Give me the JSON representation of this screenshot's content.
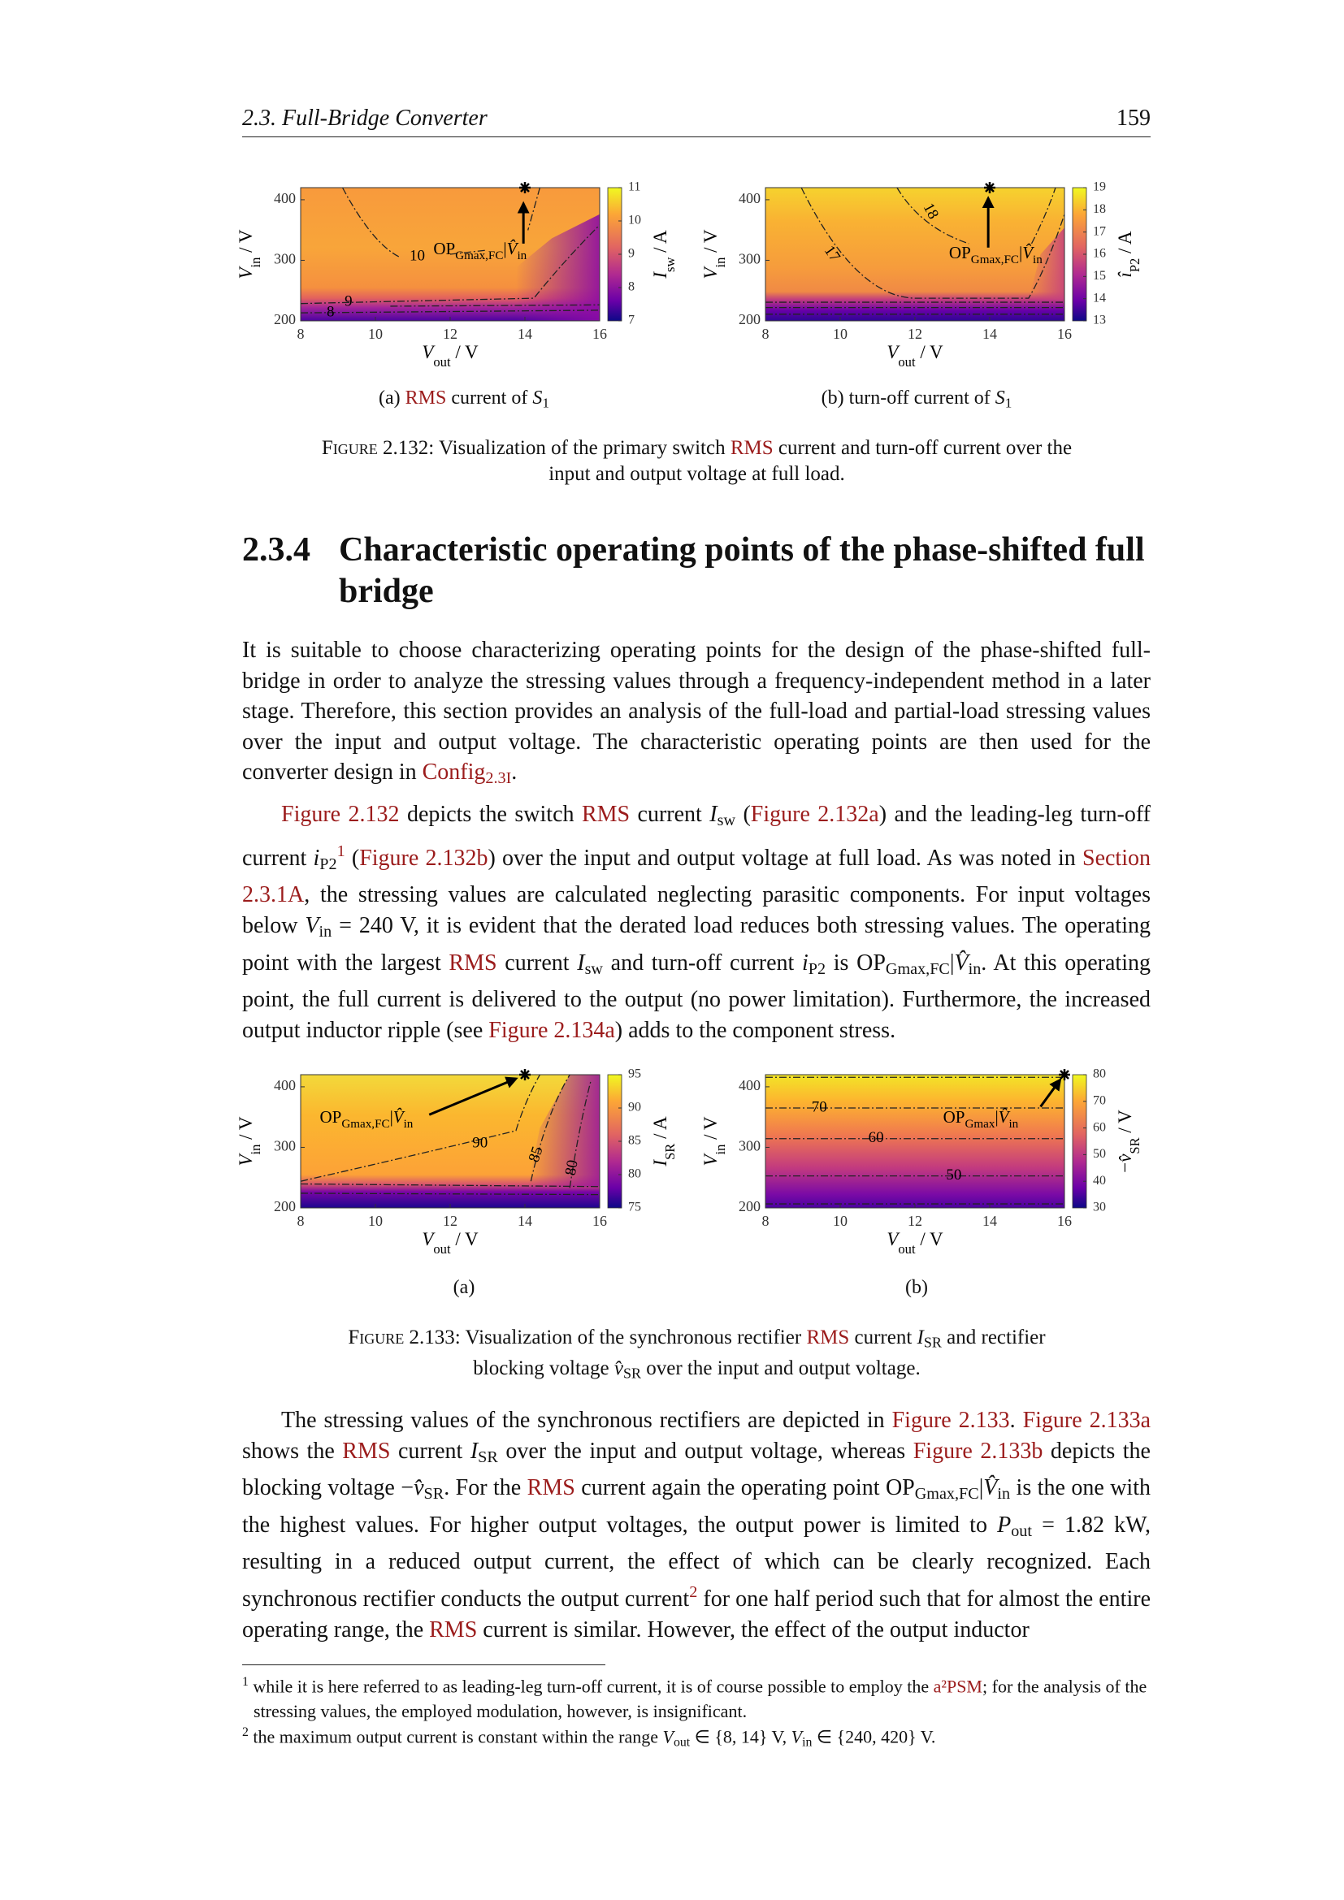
{
  "header": {
    "section": "2.3.  Full-Bridge Converter",
    "page": "159"
  },
  "figures": [
    {
      "panels": [
        {
          "type": "heatmap",
          "xlim": [
            8,
            16
          ],
          "ylim": [
            200,
            420
          ],
          "xticks": [
            8,
            10,
            12,
            14,
            16
          ],
          "yticks": [
            200,
            300,
            400
          ],
          "clim": [
            7,
            11
          ],
          "cticks": [
            7,
            8,
            9,
            10,
            11
          ],
          "contour_labels": [
            10,
            9,
            8
          ],
          "marker": [
            14,
            420
          ],
          "xlabel": [
            {
              "t": "V",
              "s": "i"
            },
            {
              "t": "out",
              "s": "sub"
            },
            " / V"
          ],
          "ylabel": [
            {
              "t": "V",
              "s": "i"
            },
            {
              "t": "in",
              "s": "sub"
            },
            " / V"
          ],
          "cbar_label": [
            {
              "t": "I",
              "s": "i"
            },
            {
              "t": "sw",
              "s": "sub"
            },
            " / A"
          ],
          "annotation": [
            "OP",
            {
              "t": "Gmax,FC",
              "s": "sub"
            },
            "|",
            {
              "t": "V̂",
              "s": "i"
            },
            {
              "t": "in",
              "s": "sub"
            }
          ],
          "subcaption": [
            "(a) ",
            {
              "t": "RMS",
              "s": "link"
            },
            " current of ",
            {
              "t": "S",
              "s": "i"
            },
            {
              "t": "1",
              "s": "sub"
            }
          ]
        },
        {
          "type": "heatmap",
          "xlim": [
            8,
            16
          ],
          "ylim": [
            200,
            420
          ],
          "xticks": [
            8,
            10,
            12,
            14,
            16
          ],
          "yticks": [
            200,
            300,
            400
          ],
          "clim": [
            13,
            19
          ],
          "cticks": [
            13,
            14,
            15,
            16,
            17,
            18,
            19
          ],
          "contour_labels": [
            18,
            17
          ],
          "marker": [
            14,
            420
          ],
          "xlabel": [
            {
              "t": "V",
              "s": "i"
            },
            {
              "t": "out",
              "s": "sub"
            },
            " / V"
          ],
          "ylabel": [
            {
              "t": "V",
              "s": "i"
            },
            {
              "t": "in",
              "s": "sub"
            },
            " / V"
          ],
          "cbar_label": [
            {
              "t": "î",
              "s": "i"
            },
            {
              "t": "P2",
              "s": "sub"
            },
            " / A"
          ],
          "annotation": [
            "OP",
            {
              "t": "Gmax,FC",
              "s": "sub"
            },
            "|",
            {
              "t": "V̂",
              "s": "i"
            },
            {
              "t": "in",
              "s": "sub"
            }
          ],
          "subcaption": [
            "(b) turn-off current of ",
            {
              "t": "S",
              "s": "i"
            },
            {
              "t": "1",
              "s": "sub"
            }
          ]
        }
      ],
      "caption": [
        {
          "t": "Figure 2.132",
          "s": "sc"
        },
        ": Visualization of the primary switch ",
        {
          "t": "RMS",
          "s": "link"
        },
        " current and turn-off current over the input and output voltage at full load."
      ]
    },
    {
      "panels": [
        {
          "type": "heatmap",
          "xlim": [
            8,
            16
          ],
          "ylim": [
            200,
            420
          ],
          "xticks": [
            8,
            10,
            12,
            14,
            16
          ],
          "yticks": [
            200,
            300,
            400
          ],
          "clim": [
            75,
            95
          ],
          "cticks": [
            75,
            80,
            85,
            90,
            95
          ],
          "contour_labels": [
            90,
            85,
            80
          ],
          "marker": [
            14,
            420
          ],
          "xlabel": [
            {
              "t": "V",
              "s": "i"
            },
            {
              "t": "out",
              "s": "sub"
            },
            " / V"
          ],
          "ylabel": [
            {
              "t": "V",
              "s": "i"
            },
            {
              "t": "in",
              "s": "sub"
            },
            " / V"
          ],
          "cbar_label": [
            {
              "t": "I",
              "s": "i"
            },
            {
              "t": "SR",
              "s": "sub"
            },
            " / A"
          ],
          "annotation": [
            "OP",
            {
              "t": "Gmax,FC",
              "s": "sub"
            },
            "|",
            {
              "t": "V̂",
              "s": "i"
            },
            {
              "t": "in",
              "s": "sub"
            }
          ],
          "subcaption": [
            "(a)"
          ]
        },
        {
          "type": "heatmap",
          "xlim": [
            8,
            16
          ],
          "ylim": [
            200,
            420
          ],
          "xticks": [
            8,
            10,
            12,
            14,
            16
          ],
          "yticks": [
            200,
            300,
            400
          ],
          "clim": [
            30,
            80
          ],
          "cticks": [
            30,
            40,
            50,
            60,
            70,
            80
          ],
          "contour_labels": [
            70,
            60,
            50
          ],
          "marker": [
            16,
            420
          ],
          "xlabel": [
            {
              "t": "V",
              "s": "i"
            },
            {
              "t": "out",
              "s": "sub"
            },
            " / V"
          ],
          "ylabel": [
            {
              "t": "V",
              "s": "i"
            },
            {
              "t": "in",
              "s": "sub"
            },
            " / V"
          ],
          "cbar_label": [
            "−",
            {
              "t": "v̂",
              "s": "i"
            },
            {
              "t": "SR",
              "s": "sub"
            },
            " / V"
          ],
          "annotation": [
            "OP",
            {
              "t": "Gmax",
              "s": "sub"
            },
            "|",
            {
              "t": "V̂",
              "s": "i"
            },
            {
              "t": "in",
              "s": "sub"
            }
          ],
          "subcaption": [
            "(b)"
          ]
        }
      ],
      "caption": [
        {
          "t": "Figure 2.133",
          "s": "sc"
        },
        ": Visualization of the synchronous rectifier ",
        {
          "t": "RMS",
          "s": "link"
        },
        " current ",
        {
          "t": "I",
          "s": "i"
        },
        {
          "t": "SR",
          "s": "sub"
        },
        " and rectifier blocking voltage ",
        {
          "t": "v̂",
          "s": "i"
        },
        {
          "t": "SR",
          "s": "sub"
        },
        " over the input and output voltage."
      ]
    }
  ],
  "section": {
    "number": "2.3.4",
    "title": "Characteristic operating points of the phase-shifted full bridge"
  },
  "paragraphs": [
    [
      "It is suitable to choose characterizing operating points for the design of the phase-shifted full-bridge in order to analyze the stressing values through a frequency-independent method in a later stage. Therefore, this section provides an analysis of the full-load and partial-load stressing values over the input and output voltage. The characteristic operating points are then used for the converter design in ",
      {
        "t": "Config",
        "s": "link"
      },
      {
        "t": "2.3I",
        "s": "link sub"
      },
      "."
    ],
    [
      {
        "t": "Figure 2.132",
        "s": "link"
      },
      " depicts the switch ",
      {
        "t": "RMS",
        "s": "link"
      },
      " current ",
      {
        "t": "I",
        "s": "i"
      },
      {
        "t": "sw",
        "s": "sub"
      },
      " (",
      {
        "t": "Figure 2.132a",
        "s": "link"
      },
      ") and the leading-leg turn-off current ",
      {
        "t": "i",
        "s": "i"
      },
      {
        "t": "P2",
        "s": "sub"
      },
      {
        "t": "1",
        "s": "link sup"
      },
      " (",
      {
        "t": "Figure 2.132b",
        "s": "link"
      },
      ") over the input and output voltage at full load. As was noted in ",
      {
        "t": "Section 2.3.1A",
        "s": "link"
      },
      ", the stressing values are calculated neglecting parasitic components. For input voltages below ",
      {
        "t": "V",
        "s": "i"
      },
      {
        "t": "in",
        "s": "sub"
      },
      " = 240 V, it is evident that the derated load reduces both stressing values. The operating point with the largest ",
      {
        "t": "RMS",
        "s": "link"
      },
      " current ",
      {
        "t": "I",
        "s": "i"
      },
      {
        "t": "sw",
        "s": "sub"
      },
      " and turn-off current ",
      {
        "t": "i",
        "s": "i"
      },
      {
        "t": "P2",
        "s": "sub"
      },
      " is OP",
      {
        "t": "Gmax,FC",
        "s": "sub"
      },
      "|",
      {
        "t": "V̂",
        "s": "i"
      },
      {
        "t": "in",
        "s": "sub"
      },
      ". At this operating point, the full current is delivered to the output (no power limitation). Furthermore, the increased output inductor ripple (see ",
      {
        "t": "Figure 2.134a",
        "s": "link"
      },
      ") adds to the component stress."
    ],
    [
      "The stressing values of the synchronous rectifiers are depicted in ",
      {
        "t": "Figure 2.133",
        "s": "link"
      },
      ". ",
      {
        "t": "Figure 2.133a",
        "s": "link"
      },
      " shows the ",
      {
        "t": "RMS",
        "s": "link"
      },
      " current ",
      {
        "t": "I",
        "s": "i"
      },
      {
        "t": "SR",
        "s": "sub"
      },
      " over the input and output voltage, whereas ",
      {
        "t": "Figure 2.133b",
        "s": "link"
      },
      " depicts the blocking voltage −",
      {
        "t": "v̂",
        "s": "i"
      },
      {
        "t": "SR",
        "s": "sub"
      },
      ". For the ",
      {
        "t": "RMS",
        "s": "link"
      },
      " current again the operating point OP",
      {
        "t": "Gmax,FC",
        "s": "sub"
      },
      "|",
      {
        "t": "V̂",
        "s": "i"
      },
      {
        "t": "in",
        "s": "sub"
      },
      " is the one with the highest values. For higher output voltages, the output power is limited to ",
      {
        "t": "P",
        "s": "i"
      },
      {
        "t": "out",
        "s": "sub"
      },
      " = 1.82 kW, resulting in a reduced output current, the effect of which can be clearly recognized. Each synchronous rectifier conducts the output current",
      {
        "t": "2",
        "s": "link sup"
      },
      " for one half period such that for almost the entire operating range, the ",
      {
        "t": "RMS",
        "s": "link"
      },
      " current is similar. However, the effect of the output inductor"
    ]
  ],
  "footnotes": [
    [
      {
        "t": "1",
        "s": "sup"
      },
      " while it is here referred to as leading-leg turn-off current, it is of course possible to employ the ",
      {
        "t": "a²PSM",
        "s": "link"
      },
      "; for the analysis of the stressing values, the employed modulation, however, is insignificant."
    ],
    [
      {
        "t": "2",
        "s": "sup"
      },
      " the maximum output current is constant within the range ",
      {
        "t": "V",
        "s": "i"
      },
      {
        "t": "out",
        "s": "sub"
      },
      " ∈ {8, 14} V, ",
      {
        "t": "V",
        "s": "i"
      },
      {
        "t": "in",
        "s": "sub"
      },
      " ∈ {240, 420} V."
    ]
  ]
}
